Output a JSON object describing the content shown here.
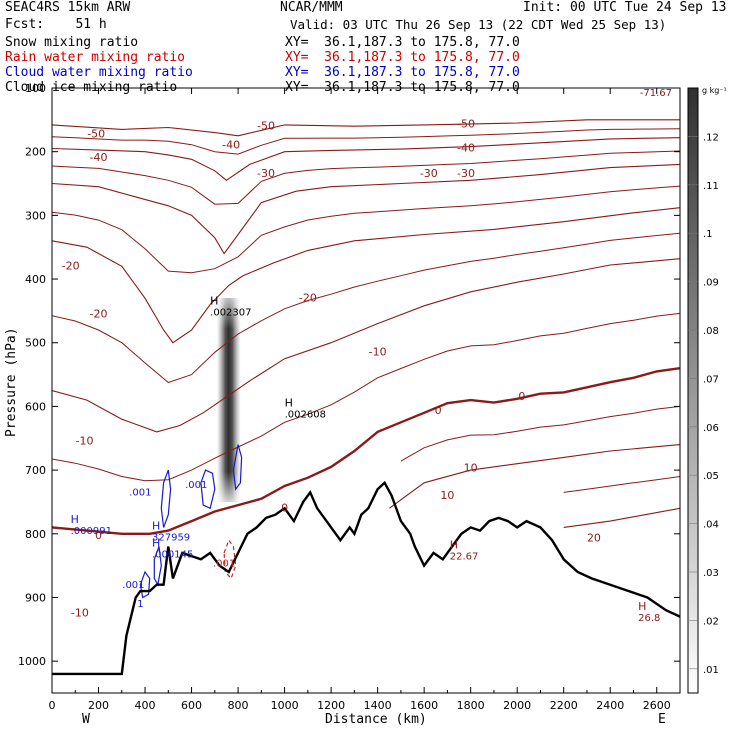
{
  "header": {
    "model": "SEAC4RS 15km ARW",
    "center": "NCAR/MMM",
    "init": "Init: 00 UTC Tue 24 Sep 13",
    "fcst": "Fcst:    51 h",
    "valid": "Valid: 03 UTC Thu 26 Sep 13 (22 CDT Wed 25 Sep 13)",
    "fields": [
      {
        "name": "Snow mixing ratio",
        "xy": "XY=  36.1,187.3 to 175.8, 77.0",
        "color": "#000000"
      },
      {
        "name": "Rain water mixing ratio",
        "xy": "XY=  36.1,187.3 to 175.8, 77.0",
        "color": "#cc0000"
      },
      {
        "name": "Cloud water mixing ratio",
        "xy": "XY=  36.1,187.3 to 175.8, 77.0",
        "color": "#0000cc"
      },
      {
        "name": "Cloud ice mixing ratio",
        "xy": "XY=  36.1,187.3 to 175.8, 77.0",
        "color": "#000000"
      }
    ]
  },
  "chart_data": {
    "type": "contour",
    "xlabel": "Distance (km)",
    "ylabel": "Pressure (hPa)",
    "xlim": [
      0,
      2700
    ],
    "ylim": [
      1050,
      100
    ],
    "x_ticks": [
      0,
      200,
      400,
      600,
      800,
      1000,
      1200,
      1400,
      1600,
      1800,
      2000,
      2200,
      2400,
      2600
    ],
    "y_ticks": [
      200,
      300,
      400,
      500,
      600,
      700,
      800,
      900,
      1000
    ],
    "y_tick_top_partial": "100",
    "x_end_labels": {
      "left": "W",
      "right": "E"
    },
    "colorbar": {
      "unit": "g kg⁻¹",
      "ticks": [
        ".01",
        ".02",
        ".03",
        ".04",
        ".05",
        ".06",
        ".07",
        ".08",
        ".09",
        ".1",
        ".11",
        ".12"
      ],
      "range": [
        0.005,
        0.13
      ]
    },
    "temperature_contours": [
      {
        "level": -50,
        "points": [
          [
            0,
            158
          ],
          [
            300,
            165
          ],
          [
            500,
            162
          ],
          [
            700,
            170
          ],
          [
            800,
            175
          ],
          [
            1000,
            158
          ],
          [
            1300,
            160
          ],
          [
            1600,
            158
          ],
          [
            2000,
            155
          ],
          [
            2300,
            150
          ],
          [
            2700,
            150
          ]
        ]
      },
      {
        "level": -40,
        "points": [
          [
            0,
            195
          ],
          [
            250,
            198
          ],
          [
            400,
            200
          ],
          [
            500,
            205
          ],
          [
            600,
            212
          ],
          [
            700,
            230
          ],
          [
            750,
            245
          ],
          [
            850,
            220
          ],
          [
            1000,
            200
          ],
          [
            1200,
            198
          ],
          [
            1500,
            196
          ],
          [
            1800,
            192
          ],
          [
            2100,
            186
          ],
          [
            2400,
            180
          ],
          [
            2700,
            178
          ]
        ]
      },
      {
        "level": -30,
        "points": [
          [
            0,
            250
          ],
          [
            200,
            255
          ],
          [
            350,
            270
          ],
          [
            500,
            285
          ],
          [
            600,
            300
          ],
          [
            700,
            335
          ],
          [
            740,
            360
          ],
          [
            800,
            330
          ],
          [
            900,
            280
          ],
          [
            1050,
            262
          ],
          [
            1200,
            255
          ],
          [
            1500,
            250
          ],
          [
            1800,
            245
          ],
          [
            2100,
            236
          ],
          [
            2400,
            225
          ],
          [
            2700,
            220
          ]
        ]
      },
      {
        "level": -20,
        "points": [
          [
            0,
            340
          ],
          [
            150,
            350
          ],
          [
            300,
            380
          ],
          [
            400,
            430
          ],
          [
            480,
            480
          ],
          [
            520,
            500
          ],
          [
            600,
            480
          ],
          [
            680,
            440
          ],
          [
            760,
            410
          ],
          [
            820,
            395
          ],
          [
            950,
            375
          ],
          [
            1100,
            355
          ],
          [
            1300,
            340
          ],
          [
            1600,
            330
          ],
          [
            1900,
            322
          ],
          [
            2200,
            310
          ],
          [
            2500,
            296
          ],
          [
            2700,
            288
          ]
        ]
      },
      {
        "level": -10,
        "points": [
          [
            0,
            575
          ],
          [
            150,
            590
          ],
          [
            300,
            620
          ],
          [
            450,
            640
          ],
          [
            550,
            630
          ],
          [
            650,
            610
          ],
          [
            750,
            585
          ],
          [
            850,
            560
          ],
          [
            1000,
            525
          ],
          [
            1200,
            500
          ],
          [
            1400,
            470
          ],
          [
            1600,
            442
          ],
          [
            1800,
            420
          ],
          [
            2000,
            405
          ],
          [
            2200,
            392
          ],
          [
            2400,
            378
          ],
          [
            2700,
            368
          ]
        ]
      },
      {
        "level": 0,
        "points": [
          [
            0,
            790
          ],
          [
            150,
            795
          ],
          [
            300,
            800
          ],
          [
            420,
            800
          ],
          [
            500,
            795
          ],
          [
            600,
            780
          ],
          [
            700,
            765
          ],
          [
            800,
            755
          ],
          [
            900,
            745
          ],
          [
            1000,
            725
          ],
          [
            1100,
            712
          ],
          [
            1200,
            695
          ],
          [
            1300,
            670
          ],
          [
            1400,
            640
          ],
          [
            1500,
            625
          ],
          [
            1600,
            610
          ],
          [
            1700,
            595
          ],
          [
            1800,
            590
          ],
          [
            1900,
            594
          ],
          [
            2000,
            588
          ],
          [
            2100,
            580
          ],
          [
            2200,
            578
          ],
          [
            2300,
            570
          ],
          [
            2400,
            562
          ],
          [
            2500,
            555
          ],
          [
            2600,
            545
          ],
          [
            2700,
            540
          ]
        ]
      },
      {
        "level": 10,
        "points": [
          [
            1450,
            760
          ],
          [
            1600,
            720
          ],
          [
            1800,
            700
          ],
          [
            2000,
            690
          ],
          [
            2200,
            680
          ],
          [
            2400,
            670
          ],
          [
            2700,
            660
          ]
        ]
      },
      {
        "level": 20,
        "points": [
          [
            2200,
            790
          ],
          [
            2400,
            780
          ],
          [
            2550,
            770
          ],
          [
            2700,
            760
          ]
        ]
      }
    ],
    "terrain": [
      [
        0,
        1020
      ],
      [
        150,
        1020
      ],
      [
        300,
        1020
      ],
      [
        320,
        960
      ],
      [
        360,
        900
      ],
      [
        380,
        890
      ],
      [
        420,
        890
      ],
      [
        450,
        880
      ],
      [
        480,
        880
      ],
      [
        500,
        820
      ],
      [
        520,
        870
      ],
      [
        560,
        830
      ],
      [
        600,
        835
      ],
      [
        640,
        840
      ],
      [
        680,
        830
      ],
      [
        720,
        850
      ],
      [
        760,
        860
      ],
      [
        800,
        830
      ],
      [
        840,
        800
      ],
      [
        880,
        790
      ],
      [
        920,
        775
      ],
      [
        960,
        770
      ],
      [
        1000,
        760
      ],
      [
        1040,
        780
      ],
      [
        1080,
        750
      ],
      [
        1110,
        735
      ],
      [
        1140,
        760
      ],
      [
        1180,
        780
      ],
      [
        1200,
        790
      ],
      [
        1240,
        810
      ],
      [
        1280,
        790
      ],
      [
        1300,
        800
      ],
      [
        1330,
        770
      ],
      [
        1360,
        760
      ],
      [
        1400,
        730
      ],
      [
        1430,
        720
      ],
      [
        1460,
        740
      ],
      [
        1500,
        780
      ],
      [
        1540,
        800
      ],
      [
        1560,
        820
      ],
      [
        1600,
        850
      ],
      [
        1640,
        830
      ],
      [
        1680,
        840
      ],
      [
        1720,
        820
      ],
      [
        1760,
        800
      ],
      [
        1800,
        790
      ],
      [
        1840,
        795
      ],
      [
        1880,
        780
      ],
      [
        1920,
        775
      ],
      [
        1960,
        780
      ],
      [
        2000,
        790
      ],
      [
        2040,
        780
      ],
      [
        2100,
        790
      ],
      [
        2150,
        810
      ],
      [
        2200,
        840
      ],
      [
        2260,
        860
      ],
      [
        2320,
        870
      ],
      [
        2400,
        880
      ],
      [
        2480,
        890
      ],
      [
        2560,
        900
      ],
      [
        2640,
        920
      ],
      [
        2700,
        930
      ]
    ],
    "snow_shading_column": {
      "x_center": 760,
      "top": 430,
      "bottom": 750,
      "peak_value": 0.12
    },
    "labels": [
      {
        "text": "-50",
        "x": 190,
        "y": 178
      },
      {
        "text": "-50",
        "x": 920,
        "y": 165
      },
      {
        "text": "-50",
        "x": 1780,
        "y": 162
      },
      {
        "text": "-40",
        "x": 200,
        "y": 215
      },
      {
        "text": "-40",
        "x": 770,
        "y": 195
      },
      {
        "text": "-40",
        "x": 1780,
        "y": 200
      },
      {
        "text": "-30",
        "x": 920,
        "y": 240
      },
      {
        "text": "-30",
        "x": 1620,
        "y": 240
      },
      {
        "text": "-30",
        "x": 1780,
        "y": 240
      },
      {
        "text": "-20",
        "x": 80,
        "y": 385
      },
      {
        "text": "-20",
        "x": 200,
        "y": 460
      },
      {
        "text": "-20",
        "x": 1100,
        "y": 435
      },
      {
        "text": "-10",
        "x": 1400,
        "y": 520
      },
      {
        "text": "-10",
        "x": 140,
        "y": 660
      },
      {
        "text": "0",
        "x": 1660,
        "y": 612
      },
      {
        "text": "0",
        "x": 2020,
        "y": 590
      },
      {
        "text": "0",
        "x": 1000,
        "y": 765
      },
      {
        "text": "0",
        "x": 200,
        "y": 808
      },
      {
        "text": "10",
        "x": 1800,
        "y": 702
      },
      {
        "text": "10",
        "x": 1700,
        "y": 745
      },
      {
        "text": "20",
        "x": 2330,
        "y": 812
      },
      {
        "text": "-10",
        "x": 120,
        "y": 930
      }
    ],
    "extrema": [
      {
        "text": "H",
        "sub": ".002307",
        "x": 680,
        "y": 440
      },
      {
        "text": "H",
        "sub": ".002608",
        "x": 1000,
        "y": 600
      },
      {
        "text": "H",
        "sub": ".000991",
        "x": 80,
        "y": 783
      },
      {
        "text": "H",
        "sub": "327959",
        "x": 430,
        "y": 793
      },
      {
        "text": "H",
        "sub": ".000145",
        "x": 430,
        "y": 820
      },
      {
        "text": "H",
        "sub": "22.67",
        "x": 1710,
        "y": 823
      },
      {
        "text": "H",
        "sub": "26.8",
        "x": 2520,
        "y": 920
      }
    ],
    "cloud_water_labels": [
      {
        "text": ".001",
        "x": 380,
        "y": 740
      },
      {
        "text": ".001",
        "x": 620,
        "y": 728
      },
      {
        "text": ".001",
        "x": 350,
        "y": 885
      },
      {
        "text": "1",
        "x": 380,
        "y": 915
      }
    ],
    "rain_labels": [
      {
        "text": ".001",
        "x": 740,
        "y": 851
      }
    ],
    "top_value_label": "-71.67"
  }
}
